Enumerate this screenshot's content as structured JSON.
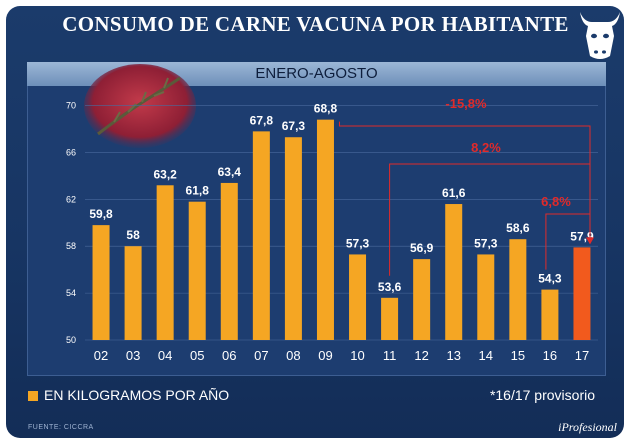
{
  "header": {
    "title": "CONSUMO DE CARNE VACUNA POR HABITANTE"
  },
  "colors": {
    "bar": "#f5a623",
    "highlight": "#f25a1d",
    "annotation": "#e02a2a"
  },
  "icons": {
    "logo": "cow-head-icon",
    "photo": "raw-meat-with-rosemary"
  },
  "footer": {
    "legend": "EN KILOGRAMOS POR AÑO",
    "note": "*16/17 provisorio",
    "source": "FUENTE: CICCRA",
    "brand": "iProfesional"
  },
  "chart_data": {
    "type": "bar",
    "title": "CONSUMO DE CARNE VACUNA POR HABITANTE",
    "subtitle": "ENERO-AGOSTO",
    "categories": [
      "02",
      "03",
      "04",
      "05",
      "06",
      "07",
      "08",
      "09",
      "10",
      "11",
      "12",
      "13",
      "14",
      "15",
      "16",
      "17"
    ],
    "values": [
      59.8,
      58,
      63.2,
      61.8,
      63.4,
      67.8,
      67.3,
      68.8,
      57.3,
      53.6,
      56.9,
      61.6,
      57.3,
      58.6,
      54.3,
      57.9
    ],
    "value_labels": [
      "59,8",
      "58",
      "63,2",
      "61,8",
      "63,4",
      "67,8",
      "67,3",
      "68,8",
      "57,3",
      "53,6",
      "56,9",
      "61,6",
      "57,3",
      "58,6",
      "54,3",
      "57,9"
    ],
    "highlight_index": 15,
    "ylim": [
      50,
      71.5
    ],
    "yticks": [
      50,
      54,
      58,
      62,
      66,
      70
    ],
    "grid": true,
    "legend_position": "bottom-left",
    "annotations": [
      {
        "label": "-15,8%",
        "from": "09",
        "to": "17"
      },
      {
        "label": "8,2%",
        "from": "11",
        "to": "17"
      },
      {
        "label": "6,8%",
        "from": "16",
        "to": "17"
      }
    ]
  }
}
